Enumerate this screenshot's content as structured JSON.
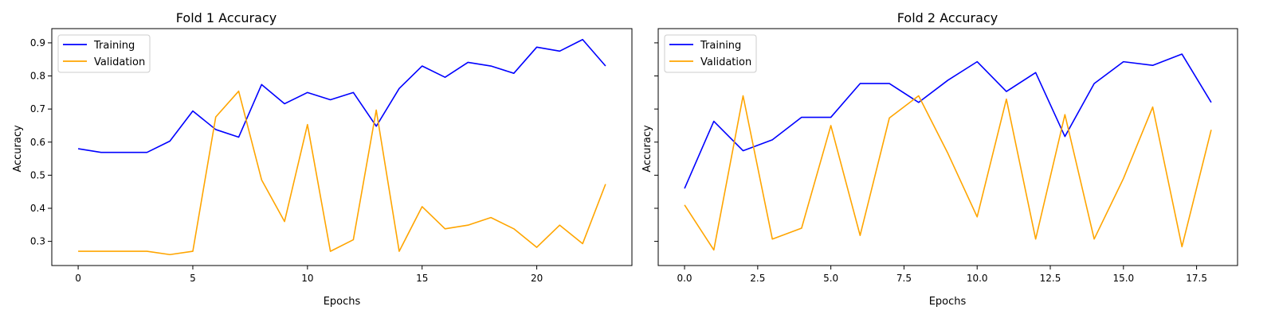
{
  "colors": {
    "training": "#0000ff",
    "validation": "#ffa500"
  },
  "chart_data": [
    {
      "type": "line",
      "title": "Fold 1 Accuracy",
      "xlabel": "Epochs",
      "ylabel": "Accuracy",
      "xlim": [
        -1.15,
        24.15
      ],
      "ylim": [
        0.227,
        0.943
      ],
      "xticks": [
        0,
        5,
        10,
        15,
        20
      ],
      "xtick_labels": [
        "0",
        "5",
        "10",
        "15",
        "20"
      ],
      "yticks": [
        0.3,
        0.4,
        0.5,
        0.6,
        0.7,
        0.8,
        0.9
      ],
      "ytick_labels": [
        "0.3",
        "0.4",
        "0.5",
        "0.6",
        "0.7",
        "0.8",
        "0.9"
      ],
      "legend_position": "top-left",
      "x": [
        0,
        1,
        2,
        3,
        4,
        5,
        6,
        7,
        8,
        9,
        10,
        11,
        12,
        13,
        14,
        15,
        16,
        17,
        18,
        19,
        20,
        21,
        22,
        23
      ],
      "series": [
        {
          "name": "Training",
          "values": [
            0.58,
            0.569,
            0.569,
            0.569,
            0.603,
            0.694,
            0.638,
            0.615,
            0.774,
            0.716,
            0.75,
            0.728,
            0.75,
            0.648,
            0.762,
            0.83,
            0.796,
            0.841,
            0.83,
            0.808,
            0.887,
            0.875,
            0.91,
            0.83
          ]
        },
        {
          "name": "Validation",
          "values": [
            0.27,
            0.27,
            0.27,
            0.27,
            0.26,
            0.27,
            0.676,
            0.754,
            0.486,
            0.36,
            0.653,
            0.27,
            0.305,
            0.697,
            0.27,
            0.405,
            0.338,
            0.349,
            0.372,
            0.338,
            0.282,
            0.349,
            0.293,
            0.473
          ]
        }
      ]
    },
    {
      "type": "line",
      "title": "Fold 2 Accuracy",
      "xlabel": "Epochs",
      "ylabel": "Accuracy",
      "xlim": [
        -0.9,
        18.9
      ],
      "ylim": [
        0.227,
        0.943
      ],
      "xticks": [
        0,
        2.5,
        5,
        7.5,
        10,
        12.5,
        15,
        17.5
      ],
      "xtick_labels": [
        "0.0",
        "2.5",
        "5.0",
        "7.5",
        "10.0",
        "12.5",
        "15.0",
        "17.5"
      ],
      "yticks": [
        0.3,
        0.4,
        0.5,
        0.6,
        0.7,
        0.8,
        0.9
      ],
      "ytick_labels": [],
      "legend_position": "top-left",
      "x": [
        0,
        1,
        2,
        3,
        4,
        5,
        6,
        7,
        8,
        9,
        10,
        11,
        12,
        13,
        14,
        15,
        16,
        17,
        18
      ],
      "series": [
        {
          "name": "Training",
          "values": [
            0.46,
            0.663,
            0.574,
            0.607,
            0.675,
            0.675,
            0.777,
            0.777,
            0.72,
            0.787,
            0.843,
            0.753,
            0.81,
            0.617,
            0.777,
            0.843,
            0.832,
            0.866,
            0.72
          ]
        },
        {
          "name": "Validation",
          "values": [
            0.41,
            0.274,
            0.74,
            0.307,
            0.34,
            0.65,
            0.318,
            0.673,
            0.74,
            0.566,
            0.374,
            0.73,
            0.307,
            0.683,
            0.307,
            0.49,
            0.706,
            0.284,
            0.637
          ]
        }
      ]
    }
  ]
}
